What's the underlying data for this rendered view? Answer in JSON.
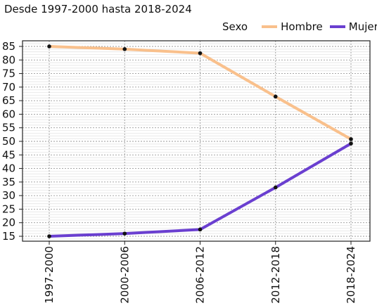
{
  "chart_data": {
    "type": "line",
    "title": "Desde 1997-2000 hasta 2018-2024",
    "xlabel": "",
    "ylabel": "",
    "categories": [
      "1997-2000",
      "2000-2006",
      "2006-2012",
      "2012-2018",
      "2018-2024"
    ],
    "series": [
      {
        "name": "Hombre",
        "color": "#f9c08c",
        "values": [
          85.0,
          84.0,
          82.5,
          66.5,
          50.8
        ]
      },
      {
        "name": "Mujer",
        "color": "#6a3fd0",
        "values": [
          15.0,
          16.0,
          17.5,
          33.0,
          49.2
        ]
      }
    ],
    "ylim": [
      13,
      86
    ],
    "yticks": [
      15,
      20,
      25,
      30,
      35,
      40,
      45,
      50,
      55,
      60,
      65,
      70,
      75,
      80,
      85
    ],
    "grid": true,
    "legend": {
      "title": "Sexo",
      "position": "top-right"
    }
  }
}
